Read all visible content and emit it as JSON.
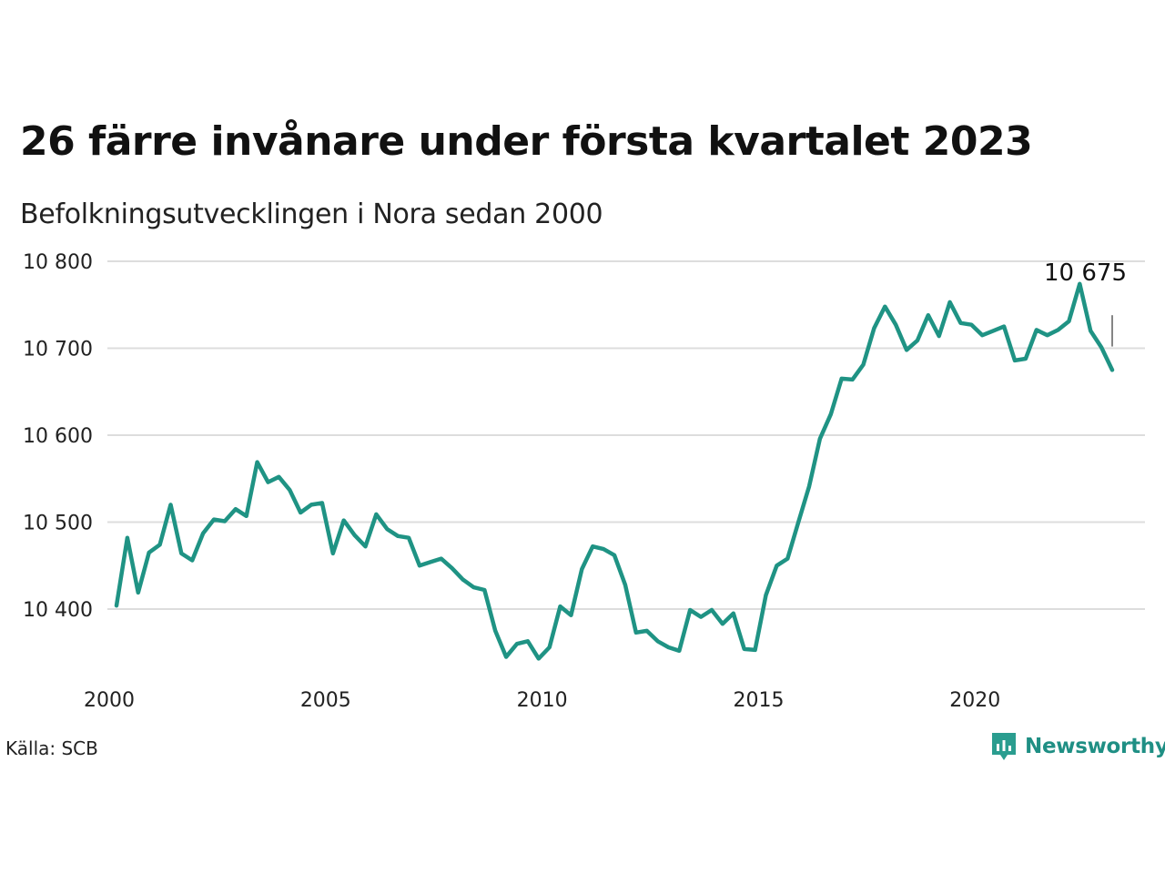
{
  "title": "26 färre invånare under första kvartalet 2023",
  "subtitle": "Befolkningsutvecklingen i Nora sedan 2000",
  "source": "Källa: SCB",
  "brand": "Newsworthy",
  "colors": {
    "line": "#1f9384",
    "grid": "#dddddd",
    "brand": "#1f8f84"
  },
  "chart_data": {
    "type": "line",
    "xlim": [
      2000,
      2023.75
    ],
    "ylim": [
      10330,
      10800
    ],
    "x_ticks": [
      2000,
      2005,
      2010,
      2015,
      2020
    ],
    "x_tick_labels": [
      "2000",
      "2005",
      "2010",
      "2015",
      "2020"
    ],
    "y_ticks": [
      10400,
      10500,
      10600,
      10700,
      10800
    ],
    "y_tick_labels": [
      "10 400",
      "10 500",
      "10 600",
      "10 700",
      "10 800"
    ],
    "grid": "horizontal",
    "annotation": {
      "text": "10 675",
      "x": 2023.0,
      "y": 10675
    },
    "series": [
      {
        "x": [
          2000.0,
          2000.25,
          2000.5,
          2000.75,
          2001.0,
          2001.25,
          2001.5,
          2001.75,
          2002.0,
          2002.25,
          2002.5,
          2002.75,
          2003.0,
          2003.25,
          2003.5,
          2003.75,
          2004.0,
          2004.25,
          2004.5,
          2004.75,
          2005.0,
          2005.25,
          2005.5,
          2005.75,
          2006.0,
          2006.25,
          2006.5,
          2006.75,
          2007.0,
          2007.25,
          2007.5,
          2007.75,
          2008.0,
          2008.25,
          2008.5,
          2008.75,
          2009.0,
          2009.25,
          2009.5,
          2009.75,
          2010.0,
          2010.25,
          2010.5,
          2010.75,
          2011.0,
          2011.25,
          2011.5,
          2011.75,
          2012.0,
          2012.25,
          2012.5,
          2012.75,
          2013.0,
          2013.25,
          2013.5,
          2013.75,
          2014.0,
          2014.25,
          2014.5,
          2014.75,
          2015.0,
          2015.25,
          2015.5,
          2015.75,
          2016.0,
          2016.25,
          2016.5,
          2016.75,
          2017.0,
          2017.25,
          2017.5,
          2017.75,
          2018.0,
          2018.25,
          2018.5,
          2018.75,
          2019.0,
          2019.25,
          2019.5,
          2019.75,
          2020.0,
          2020.25,
          2020.5,
          2020.75,
          2021.0,
          2021.25,
          2021.5,
          2021.75,
          2022.0,
          2022.25,
          2022.5,
          2022.75,
          2023.0
        ],
        "y": [
          10404,
          10482,
          10419,
          10465,
          10474,
          10520,
          10464,
          10456,
          10487,
          10503,
          10501,
          10515,
          10507,
          10569,
          10546,
          10552,
          10537,
          10511,
          10520,
          10522,
          10464,
          10502,
          10485,
          10472,
          10509,
          10492,
          10484,
          10482,
          10450,
          10454,
          10458,
          10447,
          10434,
          10425,
          10422,
          10375,
          10345,
          10360,
          10363,
          10343,
          10356,
          10403,
          10393,
          10446,
          10472,
          10469,
          10462,
          10428,
          10373,
          10375,
          10363,
          10356,
          10352,
          10399,
          10391,
          10399,
          10383,
          10395,
          10354,
          10353,
          10416,
          10450,
          10458,
          10500,
          10541,
          10596,
          10624,
          10665,
          10664,
          10681,
          10723,
          10748,
          10727,
          10698,
          10709,
          10738,
          10714,
          10753,
          10729,
          10727,
          10715,
          10720,
          10725,
          10686,
          10688,
          10721,
          10715,
          10721,
          10731,
          10774,
          10720,
          10701,
          10675
        ]
      }
    ]
  }
}
